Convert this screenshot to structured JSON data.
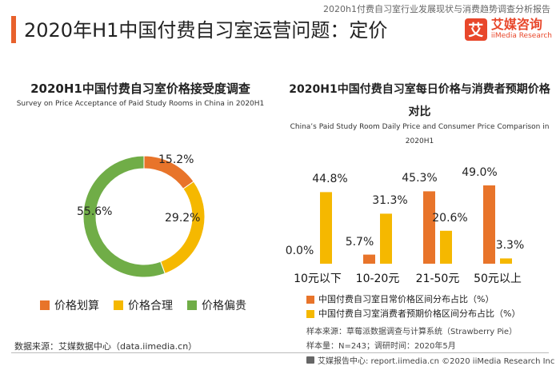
{
  "header": {
    "source_top": "2020h1付费自习室行业发展现状与消费趋势调查分析报告",
    "title": "2020年H1中国付费自习室运营问题：定价",
    "logo_mark": "艾",
    "logo_cn": "艾媒咨询",
    "logo_en": "iiMedia Research"
  },
  "left_chart": {
    "title": "2020H1中国付费自习室价格接受度调查",
    "subtitle": "Survey on Price Acceptance of Paid Study Rooms in China in 2020H1",
    "legend": [
      "价格划算",
      "价格合理",
      "价格偏贵"
    ]
  },
  "right_chart": {
    "title_line1": "2020H1中国付费自习室每日价格与消费者预期价格",
    "title_line2": "对比",
    "subtitle_line1": "China’s Paid Study Room Daily Price and Consumer Price Comparison in",
    "subtitle_line2": "2020H1",
    "legend": [
      "中国付费自习室日常价格区间分布占比（%）",
      "中国付费自习室消费者预期价格区间分布占比（%）"
    ]
  },
  "footer": {
    "left_source": "数据来源：艾媒数据中心（data.iimedia.cn）",
    "sample_source": "样本来源：草莓派数据调查与计算系统（Strawberry Pie）",
    "sample_size": "样本量：N=243；调研时间：2020年5月",
    "report": "艾媒报告中心: report.iimedia.cn  ©2020  iiMedia Research  Inc"
  },
  "colors": {
    "orange": "#e8742a",
    "yellow": "#f5b800",
    "green": "#70ad47",
    "accent": "#e8612c"
  },
  "chart_data": [
    {
      "type": "pie",
      "title": "2020H1中国付费自习室价格接受度调查",
      "categories": [
        "价格划算",
        "价格合理",
        "价格偏贵"
      ],
      "values": [
        15.2,
        29.2,
        55.6
      ],
      "labels": [
        "15.2%",
        "29.2%",
        "55.6%"
      ]
    },
    {
      "type": "bar",
      "title": "2020H1中国付费自习室每日价格与消费者预期价格对比",
      "categories": [
        "10元以下",
        "10-20元",
        "21-50元",
        "50元以上"
      ],
      "series": [
        {
          "name": "中国付费自习室日常价格区间分布占比（%）",
          "values": [
            0.0,
            5.7,
            45.3,
            49.0
          ],
          "labels": [
            "0.0%",
            "5.7%",
            "45.3%",
            "49.0%"
          ]
        },
        {
          "name": "中国付费自习室消费者预期价格区间分布占比（%）",
          "values": [
            44.8,
            31.3,
            20.6,
            3.3
          ],
          "labels": [
            "44.8%",
            "31.3%",
            "20.6%",
            "3.3%"
          ]
        }
      ]
    }
  ]
}
